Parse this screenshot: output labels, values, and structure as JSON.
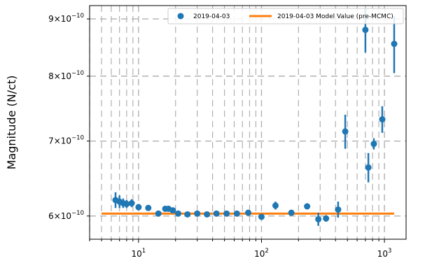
{
  "chart_data": {
    "type": "scatter",
    "xscale": "log",
    "yscale": "log",
    "xlim": [
      4.0,
      1500
    ],
    "ylim": [
      5.72e-10,
      9.25e-10
    ],
    "grid": true,
    "grid_style": "dashed",
    "legend_position": "top-right",
    "ylabel": "Magnitude (N/ct)",
    "xlabel": "",
    "x_ticks": [
      {
        "value": 10,
        "base": "10",
        "exp": "1"
      },
      {
        "value": 100,
        "base": "10",
        "exp": "2"
      },
      {
        "value": 1000,
        "base": "10",
        "exp": "3"
      }
    ],
    "y_ticks": [
      {
        "value": 6e-10,
        "mant": "6",
        "exp": "−10"
      },
      {
        "value": 7e-10,
        "mant": "7",
        "exp": "−10"
      },
      {
        "value": 8e-10,
        "mant": "8",
        "exp": "−10"
      },
      {
        "value": 9e-10,
        "mant": "9",
        "exp": "−10"
      }
    ],
    "series": [
      {
        "name": "2019-04-03",
        "kind": "errorbar",
        "color": "#1f77b4",
        "points": [
          {
            "x": 6.5,
            "y": 6.2e-10,
            "err": 1e-11
          },
          {
            "x": 7.0,
            "y": 6.18e-10,
            "err": 8e-12
          },
          {
            "x": 7.5,
            "y": 6.16e-10,
            "err": 6e-12
          },
          {
            "x": 8.0,
            "y": 6.15e-10,
            "err": 5e-12
          },
          {
            "x": 8.8,
            "y": 6.16e-10,
            "err": 5e-12
          },
          {
            "x": 10.0,
            "y": 6.11e-10,
            "err": 4e-12
          },
          {
            "x": 12.0,
            "y": 6.1e-10,
            "err": 3e-12
          },
          {
            "x": 14.5,
            "y": 6.03e-10,
            "err": 2e-12
          },
          {
            "x": 16.5,
            "y": 6.09e-10,
            "err": 2e-12
          },
          {
            "x": 17.5,
            "y": 6.09e-10,
            "err": 2e-12
          },
          {
            "x": 19.0,
            "y": 6.07e-10,
            "err": 2e-12
          },
          {
            "x": 21.0,
            "y": 6.03e-10,
            "err": 2e-12
          },
          {
            "x": 25.0,
            "y": 6.02e-10,
            "err": 2e-12
          },
          {
            "x": 30.0,
            "y": 6.03e-10,
            "err": 2e-12
          },
          {
            "x": 36.0,
            "y": 6.02e-10,
            "err": 2e-12
          },
          {
            "x": 43.0,
            "y": 6.03e-10,
            "err": 2e-12
          },
          {
            "x": 52.0,
            "y": 6.03e-10,
            "err": 2e-12
          },
          {
            "x": 63.0,
            "y": 6.03e-10,
            "err": 2e-12
          },
          {
            "x": 78.0,
            "y": 6.04e-10,
            "err": 2e-12
          },
          {
            "x": 100.0,
            "y": 5.99e-10,
            "err": 2e-12
          },
          {
            "x": 130.0,
            "y": 6.13e-10,
            "err": 5e-12
          },
          {
            "x": 175.0,
            "y": 6.04e-10,
            "err": 2e-12
          },
          {
            "x": 235.0,
            "y": 6.12e-10,
            "err": 3e-12
          },
          {
            "x": 290.0,
            "y": 5.96e-10,
            "err": 8e-12
          },
          {
            "x": 335.0,
            "y": 5.97e-10,
            "err": 4e-12
          },
          {
            "x": 420.0,
            "y": 6.08e-10,
            "err": 1e-11
          },
          {
            "x": 480.0,
            "y": 7.14e-10,
            "err": 2.5e-11
          },
          {
            "x": 700.0,
            "y": 8.8e-10,
            "err": 4e-11
          },
          {
            "x": 740.0,
            "y": 6.63e-10,
            "err": 2e-11
          },
          {
            "x": 820.0,
            "y": 6.96e-10,
            "err": 8e-12
          },
          {
            "x": 960.0,
            "y": 7.32e-10,
            "err": 2e-11
          },
          {
            "x": 1200.0,
            "y": 8.55e-10,
            "err": 5e-11
          }
        ]
      },
      {
        "name": "2019-04-03 Model Value (pre-MCMC)",
        "kind": "line",
        "color": "#ff7f0e",
        "x": [
          5.0,
          1200.0
        ],
        "y": [
          6.03e-10,
          6.03e-10
        ]
      }
    ]
  }
}
